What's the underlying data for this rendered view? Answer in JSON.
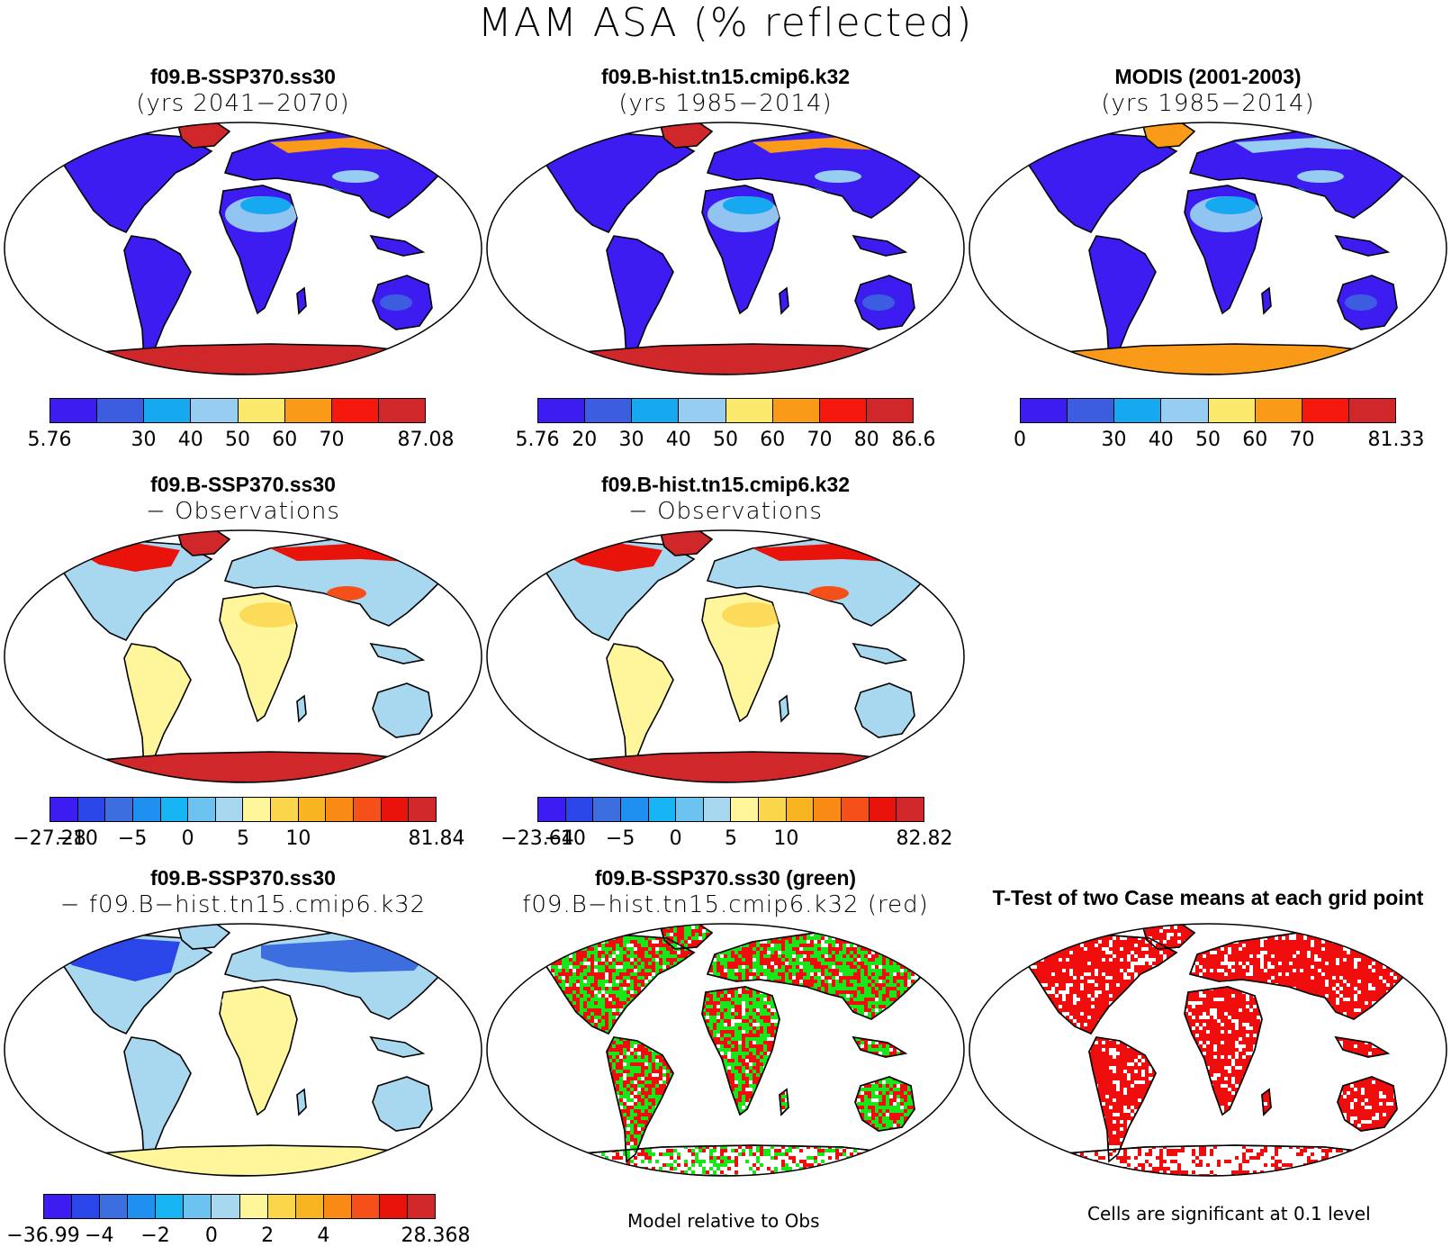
{
  "title": "MAM ASA (% reflected)",
  "colors": {
    "mean": [
      "#3d1cf2",
      "#3d5de0",
      "#16a9f2",
      "#97cdf0",
      "#fbe96c",
      "#f99b19",
      "#f5180c",
      "#d0282a"
    ],
    "diff": [
      "#3d1cf2",
      "#2a45e8",
      "#3d6ee0",
      "#1f8ff0",
      "#16b4f2",
      "#6cc3f0",
      "#a8d8f0",
      "#fff69b",
      "#fbd54a",
      "#f9b422",
      "#f98a14",
      "#f5501a",
      "#e8140c",
      "#d0282a"
    ],
    "ocean": "#ffffff",
    "green_marker": "#19e619",
    "red_marker": "#ee0c0c"
  },
  "panels": [
    {
      "id": "p1",
      "title": "f09.B-SSP370.ss30",
      "subtitle": "(yrs 2041−2070)",
      "fill": "mean",
      "colorbar": {
        "labels": [
          "5.76",
          "",
          "30",
          "40",
          "50",
          "60",
          "70",
          "",
          "87.08"
        ]
      }
    },
    {
      "id": "p2",
      "title": "f09.B-hist.tn15.cmip6.k32",
      "subtitle": "(yrs 1985−2014)",
      "fill": "mean",
      "colorbar": {
        "labels": [
          "5.76",
          "20",
          "30",
          "40",
          "50",
          "60",
          "70",
          "80",
          "86.6"
        ]
      }
    },
    {
      "id": "p3",
      "title": "MODIS (2001-2003)",
      "subtitle": "(yrs 1985−2014)",
      "fill": "mean",
      "colorbar": {
        "labels": [
          "0",
          "",
          "30",
          "40",
          "50",
          "60",
          "70",
          "",
          "81.33"
        ]
      }
    },
    {
      "id": "p4",
      "title": "f09.B-SSP370.ss30",
      "subtitle": "− Observations",
      "fill": "diff",
      "colorbar": {
        "labels": [
          "−27.28",
          "−10",
          "",
          "−5",
          "",
          "0",
          "",
          "5",
          "",
          "10",
          "",
          "",
          "",
          "",
          "81.84"
        ]
      }
    },
    {
      "id": "p5",
      "title": "f09.B-hist.tn15.cmip6.k32",
      "subtitle": "− Observations",
      "fill": "diff",
      "colorbar": {
        "labels": [
          "−23.64",
          "−10",
          "",
          "−5",
          "",
          "0",
          "",
          "5",
          "",
          "10",
          "",
          "",
          "",
          "",
          "82.82"
        ]
      }
    },
    {
      "id": "p6",
      "title": "f09.B-SSP370.ss30",
      "subtitle": "− f09.B−hist.tn15.cmip6.k32",
      "fill": "diff",
      "colorbar": {
        "labels": [
          "−36.99",
          "",
          "−4",
          "",
          "−2",
          "",
          "0",
          "",
          "2",
          "",
          "4",
          "",
          "",
          "",
          "28.368"
        ]
      }
    },
    {
      "id": "p7",
      "title": "f09.B-SSP370.ss30 (green)",
      "subtitle": "f09.B−hist.tn15.cmip6.k32 (red)",
      "fill": "compare"
    },
    {
      "id": "p8",
      "title": "T-Test of two Case means at each grid point",
      "subtitle": "",
      "fill": "ttest"
    }
  ],
  "footnotes": {
    "compare": "Model relative to Obs",
    "ttest": "Cells are significant at 0.1 level"
  }
}
